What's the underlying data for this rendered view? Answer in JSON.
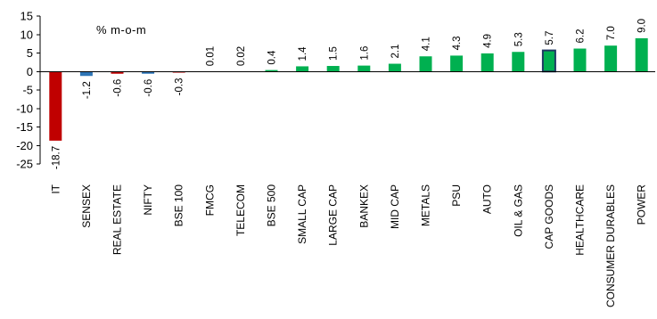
{
  "chart_data": {
    "type": "bar",
    "title": "",
    "unit_label": "% m-o-m",
    "xlabel": "",
    "ylabel": "",
    "ylim": [
      -25,
      15
    ],
    "yticks": [
      15,
      10,
      5,
      0,
      -5,
      -10,
      -15,
      -20,
      -25
    ],
    "ytick_labels": [
      "15",
      "10",
      "5",
      "0",
      "-5",
      "-10",
      "-15",
      "-20",
      "-25"
    ],
    "grid": false,
    "legend": "none",
    "categories": [
      "IT",
      "SENSEX",
      "REAL ESTATE",
      "NIFTY",
      "BSE 100",
      "FMCG",
      "TELECOM",
      "BSE 500",
      "SMALL CAP",
      "LARGE CAP",
      "BANKEX",
      "MID CAP",
      "METALS",
      "PSU",
      "AUTO",
      "OIL & GAS",
      "CAP GOODS",
      "HEALTHCARE",
      "CONSUMER DURABLES",
      "POWER"
    ],
    "values": [
      -18.7,
      -1.2,
      -0.6,
      -0.6,
      -0.3,
      0.01,
      0.02,
      0.4,
      1.4,
      1.5,
      1.6,
      2.1,
      4.1,
      4.3,
      4.9,
      5.3,
      5.7,
      6.2,
      7.0,
      9.0
    ],
    "value_labels": [
      "-18.7",
      "-1.2",
      "-0.6",
      "-0.6",
      "-0.3",
      "0.01",
      "0.02",
      "0.4",
      "1.4",
      "1.5",
      "1.6",
      "2.1",
      "4.1",
      "4.3",
      "4.9",
      "5.3",
      "5.7",
      "6.2",
      "7.0",
      "9.0"
    ],
    "colors": [
      "#c00000",
      "#2e75b6",
      "#c00000",
      "#2e75b6",
      "#c00000",
      "#00b050",
      "#00b050",
      "#00b050",
      "#00b050",
      "#00b050",
      "#00b050",
      "#00b050",
      "#00b050",
      "#00b050",
      "#00b050",
      "#00b050",
      "#00b050",
      "#00b050",
      "#00b050",
      "#00b050"
    ],
    "highlight": {
      "category": "CAP GOODS",
      "border_color": "#1f3864"
    }
  }
}
